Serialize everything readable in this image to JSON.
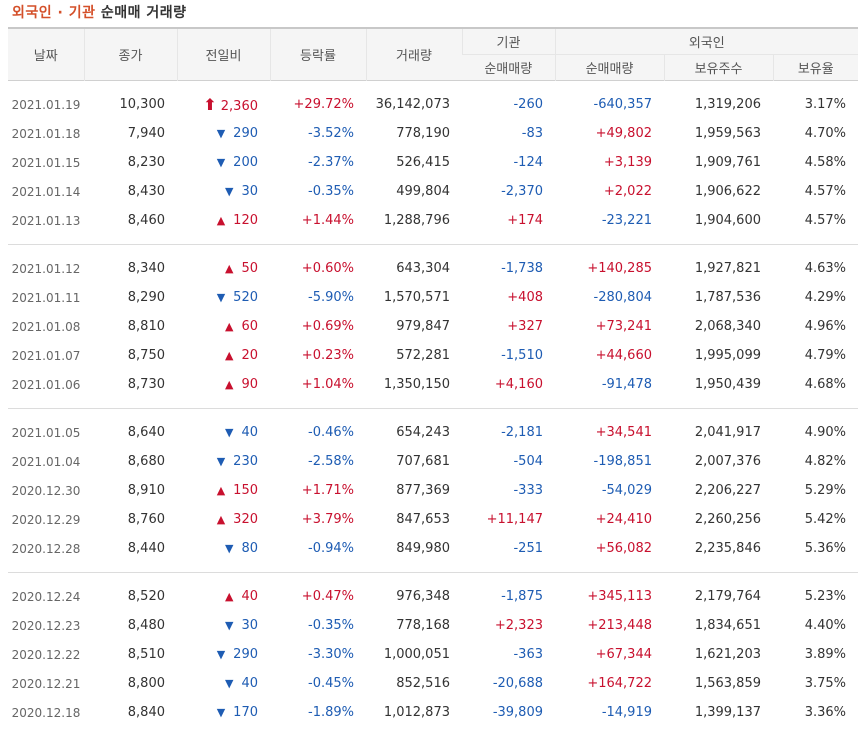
{
  "title": {
    "accent": "외국인 · 기관",
    "rest": "순매매 거래량"
  },
  "headers": {
    "date": "날짜",
    "close": "종가",
    "change": "전일비",
    "rate": "등락률",
    "volume": "거래량",
    "inst_group": "기관",
    "foreign_group": "외국인",
    "inst_net": "순매매량",
    "foreign_net": "순매매량",
    "foreign_hold": "보유주수",
    "foreign_ratio": "보유율"
  },
  "colors": {
    "up": "#c8102e",
    "down": "#1e5cb3",
    "accent": "#d4502a"
  },
  "groups": [
    [
      {
        "date": "2021.01.19",
        "close": "10,300",
        "dir": "upper",
        "change": "2,360",
        "rate": "+29.72%",
        "volume": "36,142,073",
        "inst": "-260",
        "foreign": "-640,357",
        "hold": "1,319,206",
        "ratio": "3.17%"
      },
      {
        "date": "2021.01.18",
        "close": "7,940",
        "dir": "down",
        "change": "290",
        "rate": "-3.52%",
        "volume": "778,190",
        "inst": "-83",
        "foreign": "+49,802",
        "hold": "1,959,563",
        "ratio": "4.70%"
      },
      {
        "date": "2021.01.15",
        "close": "8,230",
        "dir": "down",
        "change": "200",
        "rate": "-2.37%",
        "volume": "526,415",
        "inst": "-124",
        "foreign": "+3,139",
        "hold": "1,909,761",
        "ratio": "4.58%"
      },
      {
        "date": "2021.01.14",
        "close": "8,430",
        "dir": "down",
        "change": "30",
        "rate": "-0.35%",
        "volume": "499,804",
        "inst": "-2,370",
        "foreign": "+2,022",
        "hold": "1,906,622",
        "ratio": "4.57%"
      },
      {
        "date": "2021.01.13",
        "close": "8,460",
        "dir": "up",
        "change": "120",
        "rate": "+1.44%",
        "volume": "1,288,796",
        "inst": "+174",
        "foreign": "-23,221",
        "hold": "1,904,600",
        "ratio": "4.57%"
      }
    ],
    [
      {
        "date": "2021.01.12",
        "close": "8,340",
        "dir": "up",
        "change": "50",
        "rate": "+0.60%",
        "volume": "643,304",
        "inst": "-1,738",
        "foreign": "+140,285",
        "hold": "1,927,821",
        "ratio": "4.63%"
      },
      {
        "date": "2021.01.11",
        "close": "8,290",
        "dir": "down",
        "change": "520",
        "rate": "-5.90%",
        "volume": "1,570,571",
        "inst": "+408",
        "foreign": "-280,804",
        "hold": "1,787,536",
        "ratio": "4.29%"
      },
      {
        "date": "2021.01.08",
        "close": "8,810",
        "dir": "up",
        "change": "60",
        "rate": "+0.69%",
        "volume": "979,847",
        "inst": "+327",
        "foreign": "+73,241",
        "hold": "2,068,340",
        "ratio": "4.96%"
      },
      {
        "date": "2021.01.07",
        "close": "8,750",
        "dir": "up",
        "change": "20",
        "rate": "+0.23%",
        "volume": "572,281",
        "inst": "-1,510",
        "foreign": "+44,660",
        "hold": "1,995,099",
        "ratio": "4.79%"
      },
      {
        "date": "2021.01.06",
        "close": "8,730",
        "dir": "up",
        "change": "90",
        "rate": "+1.04%",
        "volume": "1,350,150",
        "inst": "+4,160",
        "foreign": "-91,478",
        "hold": "1,950,439",
        "ratio": "4.68%"
      }
    ],
    [
      {
        "date": "2021.01.05",
        "close": "8,640",
        "dir": "down",
        "change": "40",
        "rate": "-0.46%",
        "volume": "654,243",
        "inst": "-2,181",
        "foreign": "+34,541",
        "hold": "2,041,917",
        "ratio": "4.90%"
      },
      {
        "date": "2021.01.04",
        "close": "8,680",
        "dir": "down",
        "change": "230",
        "rate": "-2.58%",
        "volume": "707,681",
        "inst": "-504",
        "foreign": "-198,851",
        "hold": "2,007,376",
        "ratio": "4.82%"
      },
      {
        "date": "2020.12.30",
        "close": "8,910",
        "dir": "up",
        "change": "150",
        "rate": "+1.71%",
        "volume": "877,369",
        "inst": "-333",
        "foreign": "-54,029",
        "hold": "2,206,227",
        "ratio": "5.29%"
      },
      {
        "date": "2020.12.29",
        "close": "8,760",
        "dir": "up",
        "change": "320",
        "rate": "+3.79%",
        "volume": "847,653",
        "inst": "+11,147",
        "foreign": "+24,410",
        "hold": "2,260,256",
        "ratio": "5.42%"
      },
      {
        "date": "2020.12.28",
        "close": "8,440",
        "dir": "down",
        "change": "80",
        "rate": "-0.94%",
        "volume": "849,980",
        "inst": "-251",
        "foreign": "+56,082",
        "hold": "2,235,846",
        "ratio": "5.36%"
      }
    ],
    [
      {
        "date": "2020.12.24",
        "close": "8,520",
        "dir": "up",
        "change": "40",
        "rate": "+0.47%",
        "volume": "976,348",
        "inst": "-1,875",
        "foreign": "+345,113",
        "hold": "2,179,764",
        "ratio": "5.23%"
      },
      {
        "date": "2020.12.23",
        "close": "8,480",
        "dir": "down",
        "change": "30",
        "rate": "-0.35%",
        "volume": "778,168",
        "inst": "+2,323",
        "foreign": "+213,448",
        "hold": "1,834,651",
        "ratio": "4.40%"
      },
      {
        "date": "2020.12.22",
        "close": "8,510",
        "dir": "down",
        "change": "290",
        "rate": "-3.30%",
        "volume": "1,000,051",
        "inst": "-363",
        "foreign": "+67,344",
        "hold": "1,621,203",
        "ratio": "3.89%"
      },
      {
        "date": "2020.12.21",
        "close": "8,800",
        "dir": "down",
        "change": "40",
        "rate": "-0.45%",
        "volume": "852,516",
        "inst": "-20,688",
        "foreign": "+164,722",
        "hold": "1,563,859",
        "ratio": "3.75%"
      },
      {
        "date": "2020.12.18",
        "close": "8,840",
        "dir": "down",
        "change": "170",
        "rate": "-1.89%",
        "volume": "1,012,873",
        "inst": "-39,809",
        "foreign": "-14,919",
        "hold": "1,399,137",
        "ratio": "3.36%"
      }
    ]
  ]
}
